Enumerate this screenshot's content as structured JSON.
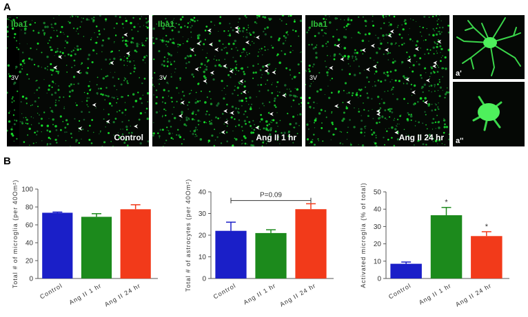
{
  "panel_a": {
    "letter": "A",
    "images": [
      {
        "stain": "Iba1",
        "landmark": "3V",
        "condition": "Control"
      },
      {
        "stain": "Iba1",
        "landmark": "3V",
        "condition": "Ang II 1 hr"
      },
      {
        "stain": "Iba1",
        "landmark": "3V",
        "condition": "Ang II 24 hr"
      }
    ],
    "insets": [
      {
        "label": "a'"
      },
      {
        "label": "a''"
      }
    ],
    "colors": {
      "stain": "#2fbf3a",
      "arrow": "#ffffff",
      "background": "#050805"
    }
  },
  "panel_b": {
    "letter": "B"
  },
  "chart_data": [
    {
      "type": "bar",
      "categories": [
        "Control",
        "Ang II 1 hr",
        "Ang II 24 hr"
      ],
      "values": [
        73.5,
        69,
        77.5
      ],
      "errors": [
        0.8,
        3.5,
        5
      ],
      "colors": [
        "#1a1fc8",
        "#1c8a1c",
        "#f23a1a"
      ],
      "ylabel": "Total # of microglia (per 40Om²)",
      "ylim": [
        0,
        100
      ],
      "yticks": [
        0,
        20,
        40,
        60,
        80,
        100
      ],
      "annotations": []
    },
    {
      "type": "bar",
      "categories": [
        "Control",
        "Ang II 1 hr",
        "Ang II 24 hr"
      ],
      "values": [
        22,
        21,
        32
      ],
      "errors": [
        4,
        1.5,
        2.5
      ],
      "colors": [
        "#1a1fc8",
        "#1c8a1c",
        "#f23a1a"
      ],
      "ylabel": "Total # of astrocytes (per 40Om²)",
      "ylim": [
        0,
        40
      ],
      "yticks": [
        0,
        10,
        20,
        30,
        40
      ],
      "annotations": [
        "P=0.09"
      ]
    },
    {
      "type": "bar",
      "categories": [
        "Control",
        "Ang II 1 hr",
        "Ang II 24 hr"
      ],
      "values": [
        8.5,
        36.5,
        24.5
      ],
      "errors": [
        1,
        4.5,
        2.5
      ],
      "colors": [
        "#1a1fc8",
        "#1c8a1c",
        "#f23a1a"
      ],
      "ylabel": "Activated microglia (% of total)",
      "ylim": [
        0,
        50
      ],
      "yticks": [
        0,
        10,
        20,
        30,
        40,
        50
      ],
      "annotations": [
        "",
        "*",
        "*"
      ]
    }
  ]
}
